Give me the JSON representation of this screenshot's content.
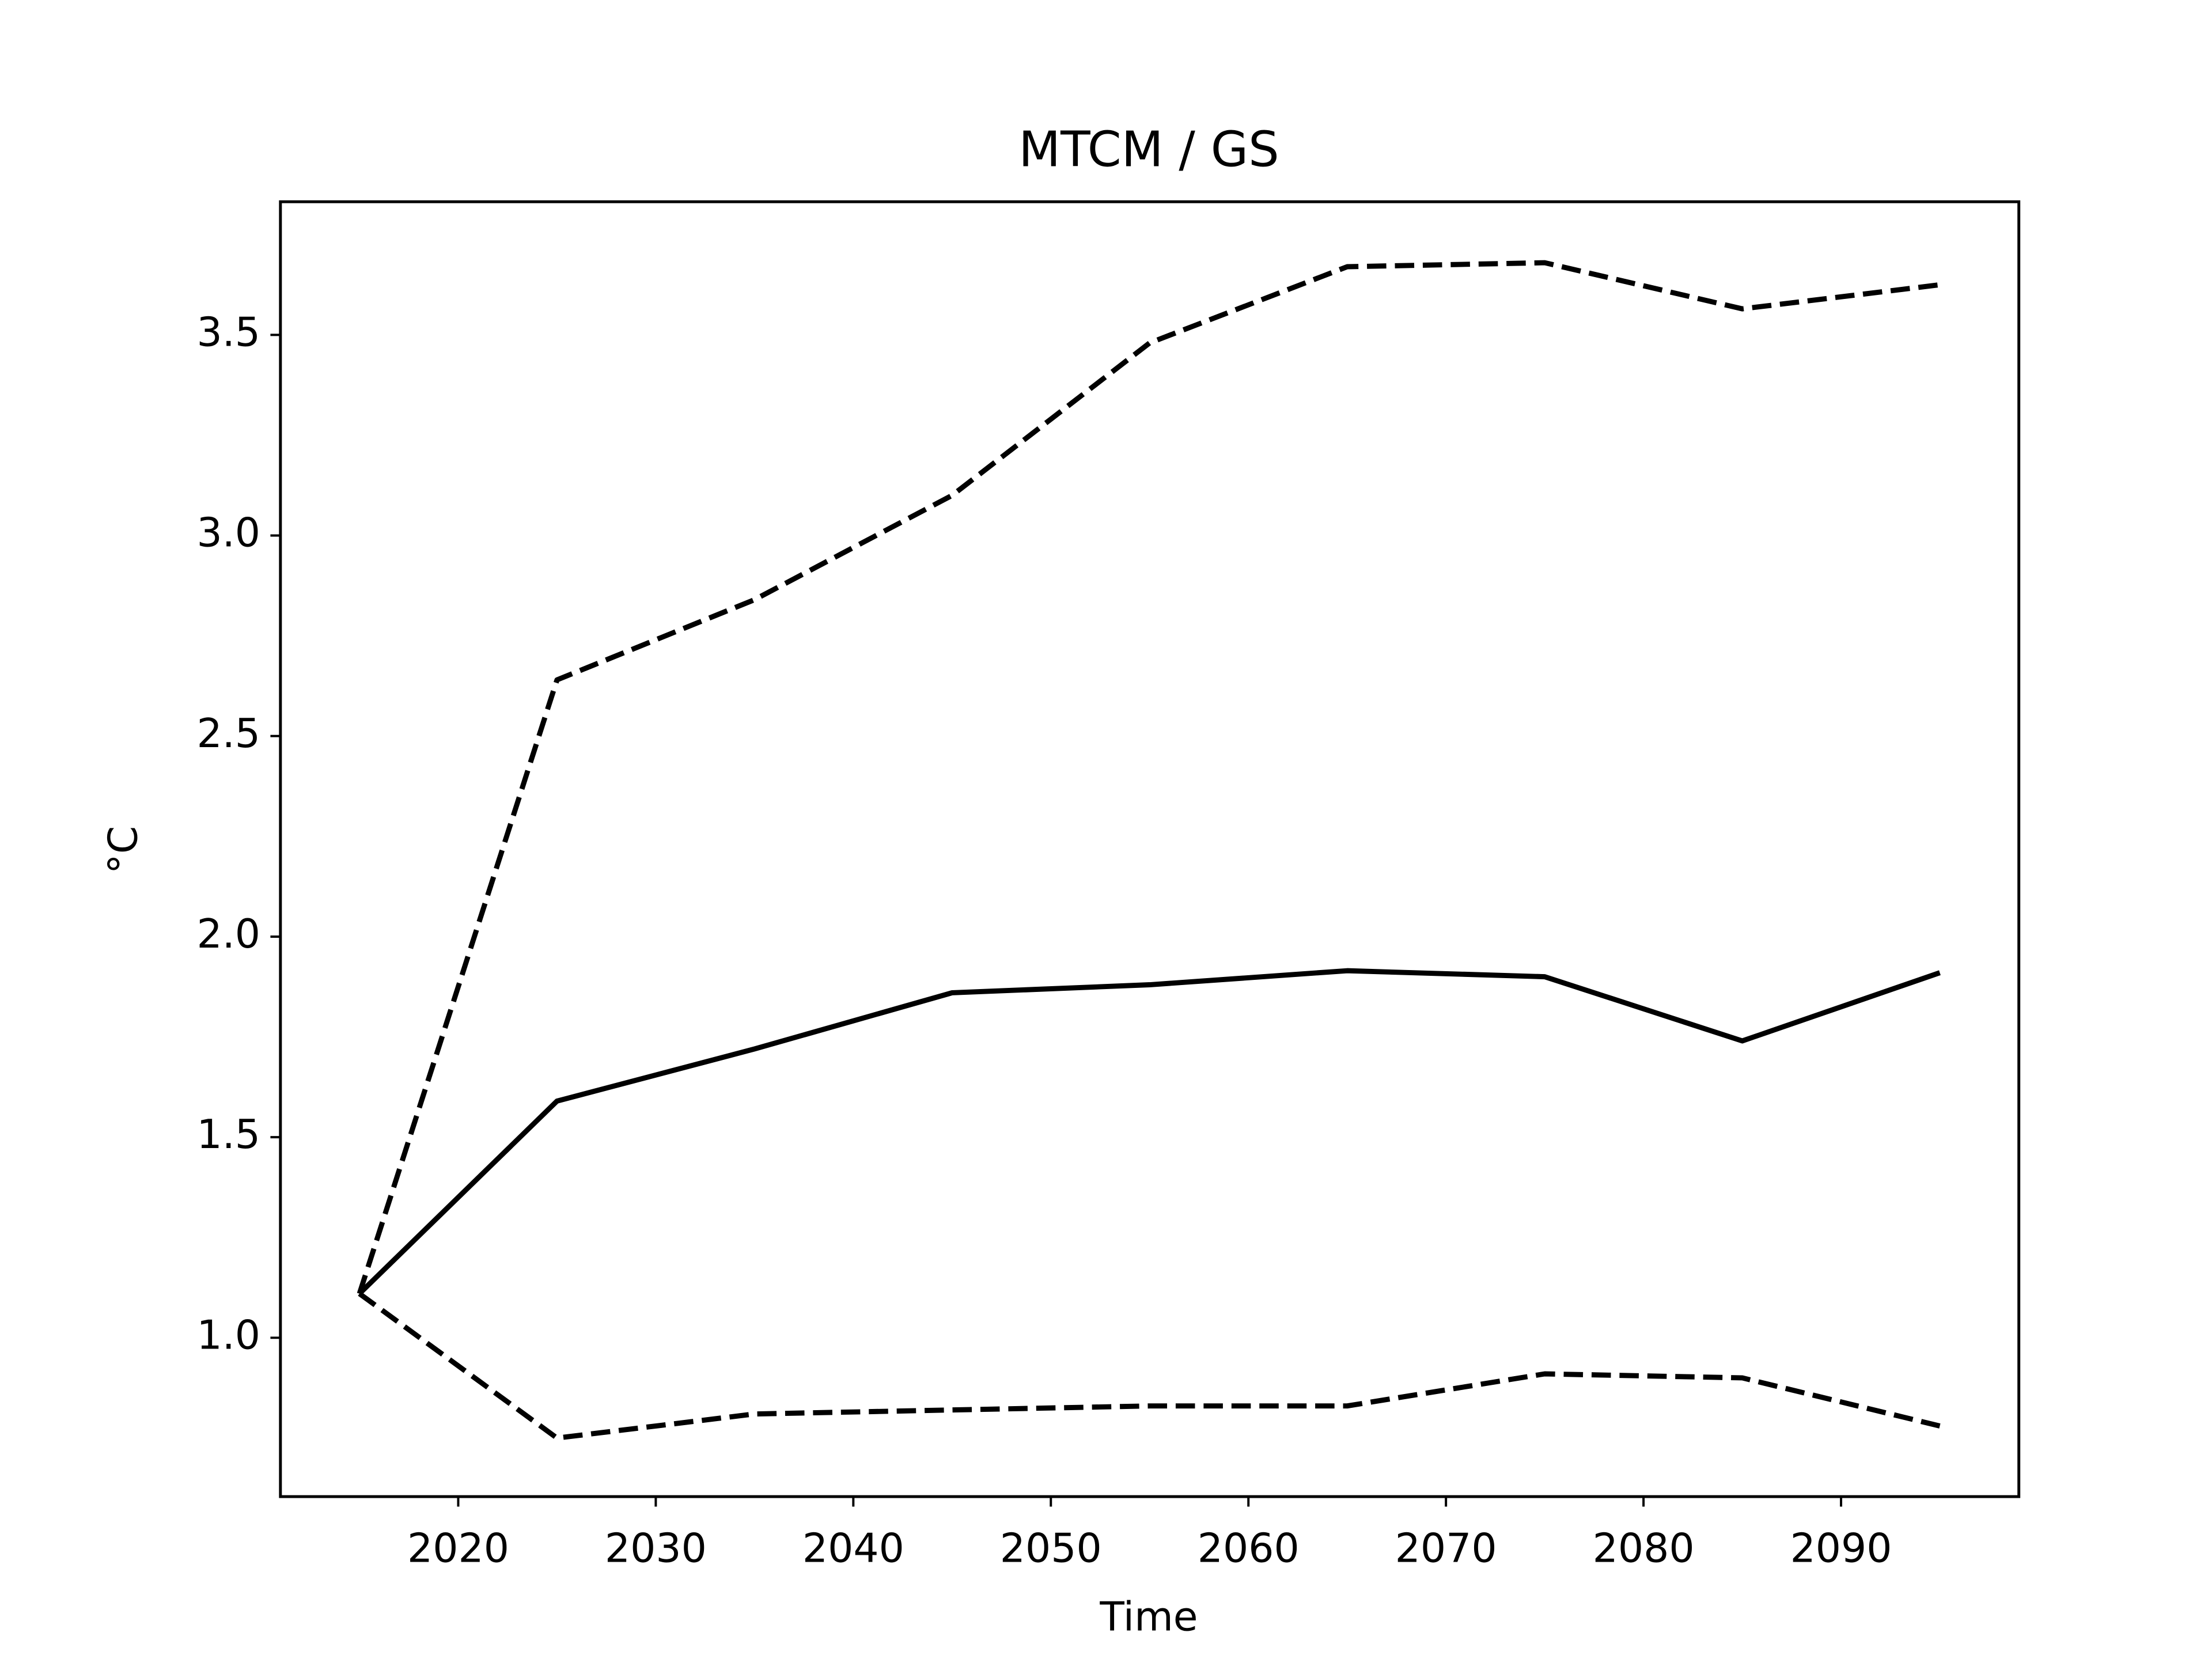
{
  "chart_data": {
    "type": "line",
    "title": "MTCM / GS",
    "xlabel": "Time",
    "ylabel": "°C",
    "x": [
      2015,
      2025,
      2035,
      2045,
      2055,
      2065,
      2075,
      2085,
      2095
    ],
    "series": [
      {
        "color": "#000000",
        "linestyle": "solid",
        "values": [
          1.11,
          1.59,
          1.72,
          1.86,
          1.88,
          1.915,
          1.9,
          1.74,
          1.91
        ]
      },
      {
        "color": "#000000",
        "linestyle": "dashed",
        "values": [
          1.11,
          2.64,
          2.84,
          3.1,
          3.48,
          3.67,
          3.68,
          3.565,
          3.625
        ]
      },
      {
        "color": "#000000",
        "linestyle": "dashed",
        "values": [
          1.11,
          0.75,
          0.81,
          0.82,
          0.83,
          0.83,
          0.91,
          0.9,
          0.78
        ]
      }
    ],
    "xlim": [
      2011,
      2099
    ],
    "xticks": [
      2020,
      2030,
      2040,
      2050,
      2060,
      2070,
      2080,
      2090
    ],
    "ylim": [
      0.604,
      3.832
    ],
    "yticks": [
      {
        "value": 1,
        "label": "1.0"
      },
      1.5,
      {
        "value": 2,
        "label": "2.0"
      },
      2.5,
      {
        "value": 3,
        "label": "3.0"
      },
      3.5
    ],
    "grid": false
  }
}
